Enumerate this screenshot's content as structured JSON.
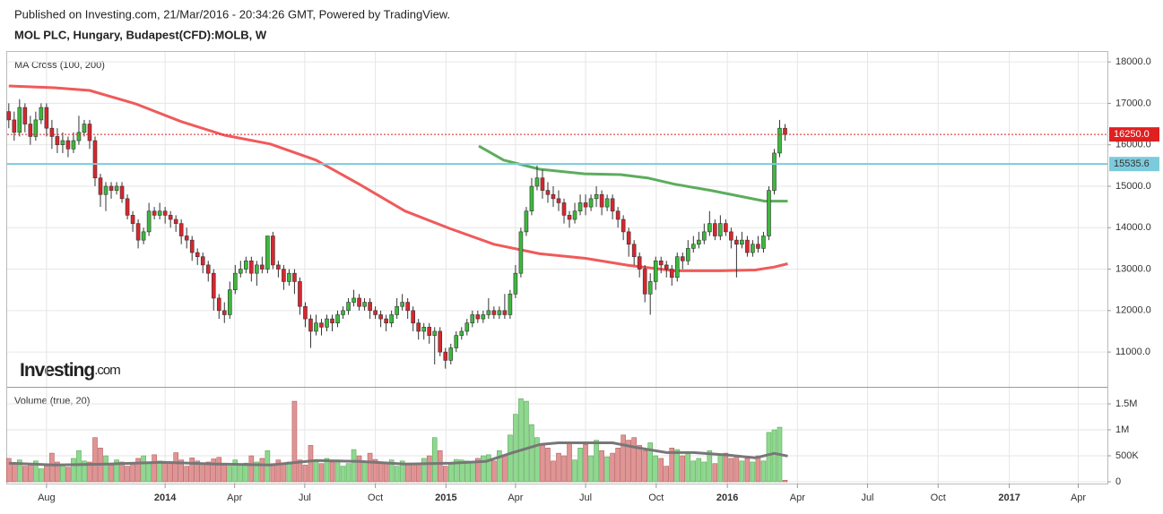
{
  "header": {
    "published": "Published on Investing.com, 21/Mar/2016 - 20:34:26 GMT, Powered by TradingView.",
    "symbol": "MOL PLC, Hungary, Budapest(CFD):MOLB, W"
  },
  "logo": {
    "brand": "Investing",
    "suffix": ".com"
  },
  "chart_data": [
    {
      "type": "candlestick",
      "title": "MA Cross (100, 200)",
      "up_color": "#3cb93c",
      "down_color": "#d9262e",
      "x": [
        -29,
        -28,
        -27,
        -26,
        -25,
        -24,
        -23,
        -22,
        -21,
        -20,
        -19,
        -18,
        -17,
        -16,
        -15,
        -14,
        -13,
        -12,
        -11,
        -10,
        -9,
        -8,
        -7,
        -6,
        -5,
        -4,
        -3,
        -2,
        -1,
        0,
        1,
        2,
        3,
        4,
        5,
        6,
        7,
        8,
        9,
        10,
        11,
        12,
        13,
        14,
        15,
        16,
        17,
        18,
        19,
        20,
        21,
        22,
        23,
        24,
        25,
        26,
        27,
        28,
        29,
        30,
        31,
        32,
        33,
        34,
        35,
        36,
        37,
        38,
        39,
        40,
        41,
        42,
        43,
        44,
        45,
        46,
        47,
        48,
        49,
        50,
        51,
        52,
        53,
        54,
        55,
        56,
        57,
        58,
        59,
        60,
        61,
        62,
        63,
        64,
        65,
        66,
        67,
        68,
        69,
        70,
        71,
        72,
        73,
        74,
        75,
        76,
        77,
        78,
        79,
        80,
        81,
        82,
        83,
        84,
        85,
        86,
        87,
        88,
        89,
        90,
        91,
        92,
        93,
        94,
        95,
        96,
        97,
        98,
        99,
        100,
        101,
        102,
        103,
        104,
        105,
        106,
        107,
        108,
        109,
        110,
        111,
        112,
        113,
        114,
        115
      ],
      "open": [
        16800,
        16600,
        16300,
        16900,
        16500,
        16200,
        16600,
        16900,
        16400,
        16200,
        16000,
        16100,
        15900,
        16100,
        16300,
        16500,
        16100,
        15200,
        14800,
        15000,
        14900,
        15000,
        14700,
        14300,
        14100,
        13700,
        13900,
        14400,
        14300,
        14400,
        14300,
        14200,
        14100,
        13800,
        13700,
        13400,
        13300,
        13100,
        12900,
        12300,
        12000,
        11900,
        12500,
        12900,
        13000,
        13200,
        12900,
        13100,
        13000,
        13800,
        13100,
        13000,
        12700,
        12900,
        12700,
        12100,
        11800,
        11500,
        11700,
        11600,
        11800,
        11700,
        11900,
        12000,
        12200,
        12300,
        12100,
        12200,
        12000,
        11900,
        11800,
        11700,
        11900,
        12100,
        12200,
        12000,
        11700,
        11500,
        11600,
        11400,
        11500,
        11000,
        10800,
        11100,
        11400,
        11500,
        11700,
        11900,
        11800,
        11900,
        12000,
        11900,
        12000,
        11900,
        12400,
        12900,
        13900,
        14400,
        15000,
        15200,
        14900,
        14800,
        14700,
        14600,
        14300,
        14200,
        14400,
        14600,
        14500,
        14700,
        14800,
        14500,
        14700,
        14400,
        14200,
        13900,
        13600,
        13300,
        13000,
        12400,
        12700,
        13200,
        13100,
        13000,
        12800,
        13300,
        13200,
        13500,
        13600,
        13700,
        13900,
        14100,
        13800,
        14100,
        13900,
        13700,
        13600,
        13700,
        13400,
        13600,
        13500,
        13800,
        14900,
        15800,
        16400
      ],
      "high": [
        17000,
        16800,
        17100,
        17000,
        16700,
        16800,
        17000,
        17000,
        16600,
        16400,
        16300,
        16200,
        16300,
        16700,
        16600,
        16600,
        16200,
        15300,
        15100,
        15100,
        15100,
        15100,
        14800,
        14400,
        14200,
        14000,
        14600,
        14500,
        14600,
        14500,
        14400,
        14300,
        14200,
        14000,
        13800,
        13500,
        13400,
        13200,
        13000,
        12400,
        12200,
        12700,
        13100,
        13200,
        13300,
        13300,
        13200,
        13300,
        13800,
        13900,
        13200,
        13100,
        13000,
        13000,
        12800,
        12200,
        11900,
        11900,
        11800,
        11900,
        11900,
        12000,
        12100,
        12300,
        12500,
        12400,
        12300,
        12300,
        12100,
        12000,
        11900,
        12000,
        12300,
        12400,
        12300,
        12100,
        11800,
        11700,
        11700,
        11600,
        11600,
        11100,
        11200,
        11500,
        11600,
        11800,
        12000,
        12000,
        12000,
        12300,
        12100,
        12100,
        12400,
        12500,
        13100,
        14000,
        14500,
        15200,
        15500,
        15400,
        15100,
        15000,
        14900,
        14700,
        14400,
        14600,
        14800,
        14800,
        14800,
        15000,
        14900,
        14800,
        14800,
        14500,
        14300,
        14000,
        13700,
        13400,
        13100,
        12900,
        13300,
        13300,
        13200,
        13100,
        13400,
        13400,
        13700,
        13800,
        13900,
        14100,
        14400,
        14200,
        14300,
        14200,
        14000,
        13800,
        13900,
        13800,
        13700,
        13800,
        13900,
        15000,
        15900,
        16600,
        16500
      ],
      "low": [
        16400,
        16100,
        16200,
        16300,
        16000,
        16100,
        16500,
        16200,
        15900,
        15800,
        15800,
        15700,
        15800,
        16000,
        16200,
        15900,
        15000,
        14500,
        14400,
        14700,
        14800,
        14600,
        14200,
        13900,
        13500,
        13600,
        13800,
        14200,
        14200,
        14100,
        14000,
        13900,
        13600,
        13500,
        13200,
        13100,
        12900,
        12700,
        12000,
        11800,
        11700,
        11800,
        12400,
        12800,
        12900,
        12700,
        12600,
        12900,
        12900,
        13000,
        12800,
        12500,
        12600,
        12400,
        11900,
        11600,
        11100,
        11400,
        11400,
        11500,
        11500,
        11600,
        11800,
        11900,
        12100,
        12000,
        12000,
        11800,
        11800,
        11600,
        11500,
        11600,
        11800,
        12000,
        11800,
        11500,
        11300,
        11300,
        11200,
        10700,
        10900,
        10600,
        10700,
        11000,
        11300,
        11400,
        11600,
        11700,
        11700,
        11800,
        11800,
        11800,
        11800,
        11800,
        12300,
        12800,
        13800,
        14300,
        14900,
        14700,
        14600,
        14500,
        14400,
        14100,
        14000,
        14100,
        14300,
        14300,
        14400,
        14500,
        14300,
        14400,
        14200,
        14000,
        13700,
        13300,
        13100,
        12800,
        12200,
        11900,
        12500,
        12900,
        12800,
        12600,
        12700,
        13000,
        13100,
        13400,
        13500,
        13600,
        13800,
        13700,
        13700,
        13800,
        13500,
        12800,
        13500,
        13300,
        13300,
        13400,
        13400,
        13700,
        14800,
        15700,
        16100
      ],
      "close": [
        16600,
        16300,
        16900,
        16500,
        16200,
        16600,
        16900,
        16400,
        16200,
        16000,
        16100,
        15900,
        16100,
        16300,
        16500,
        16100,
        15200,
        14800,
        15000,
        14900,
        15000,
        14700,
        14300,
        14100,
        13700,
        13900,
        14400,
        14300,
        14400,
        14300,
        14200,
        14100,
        13800,
        13700,
        13400,
        13300,
        13100,
        12900,
        12300,
        12000,
        11900,
        12500,
        12900,
        13000,
        13200,
        12900,
        13100,
        13000,
        13800,
        13100,
        13000,
        12700,
        12900,
        12700,
        12100,
        11800,
        11500,
        11700,
        11600,
        11800,
        11700,
        11900,
        12000,
        12200,
        12300,
        12100,
        12200,
        12000,
        11900,
        11800,
        11700,
        11900,
        12100,
        12200,
        12000,
        11700,
        11500,
        11600,
        11400,
        11500,
        11000,
        10800,
        11100,
        11400,
        11500,
        11700,
        11900,
        11800,
        11900,
        12000,
        11900,
        12000,
        11900,
        12400,
        12900,
        13900,
        14400,
        15000,
        15200,
        14900,
        14800,
        14700,
        14600,
        14300,
        14200,
        14400,
        14600,
        14500,
        14700,
        14800,
        14500,
        14700,
        14400,
        14200,
        13900,
        13600,
        13300,
        13000,
        12400,
        12700,
        13200,
        13100,
        13000,
        12800,
        13300,
        13200,
        13500,
        13600,
        13700,
        13900,
        14100,
        13800,
        14100,
        13900,
        13700,
        13600,
        13700,
        13400,
        13600,
        13500,
        13800,
        14900,
        15800,
        16400,
        16250
      ],
      "lines": [
        {
          "color": "#f05a5a",
          "x": [
            -29,
            -20.5,
            -14,
            -5.5,
            3,
            11,
            19.5,
            28,
            36,
            44.5,
            53,
            61,
            69.5,
            78,
            86,
            94.5,
            103,
            109.5,
            113,
            115.5
          ],
          "values": [
            17420,
            17375,
            17310,
            16990,
            16560,
            16230,
            16020,
            15630,
            15050,
            14400,
            13970,
            13600,
            13370,
            13260,
            13090,
            12960,
            12960,
            12980,
            13050,
            13130
          ]
        },
        {
          "color": "#5cad5c",
          "x": [
            58.2,
            62.8,
            69.5,
            77.8,
            84.5,
            89.5,
            94.5,
            101.2,
            106.2,
            111.2,
            115.5
          ],
          "values": [
            15970,
            15630,
            15410,
            15300,
            15280,
            15200,
            15050,
            14900,
            14770,
            14640,
            14640
          ]
        }
      ],
      "hlines": [
        {
          "value": 16250,
          "label": "16250.0",
          "color": "#e02020",
          "text_color": "#ffffff",
          "dashed": true
        },
        {
          "value": 15535.6,
          "label": "15535.6",
          "color": "#7ccbdc",
          "text_color": "#333333",
          "dashed": false
        }
      ],
      "xlim": [
        -29.3,
        174.8
      ],
      "xticks": [
        {
          "value": -22,
          "label": "Aug"
        },
        {
          "value": 0,
          "label": "2014"
        },
        {
          "value": 12.9,
          "label": "Apr"
        },
        {
          "value": 25.9,
          "label": "Jul"
        },
        {
          "value": 39,
          "label": "Oct"
        },
        {
          "value": 52.1,
          "label": "2015"
        },
        {
          "value": 65,
          "label": "Apr"
        },
        {
          "value": 78,
          "label": "Jul"
        },
        {
          "value": 91.1,
          "label": "Oct"
        },
        {
          "value": 104.3,
          "label": "2016"
        },
        {
          "value": 117.3,
          "label": "Apr"
        },
        {
          "value": 130.3,
          "label": "Jul"
        },
        {
          "value": 143.4,
          "label": "Oct"
        },
        {
          "value": 156.6,
          "label": "2017"
        },
        {
          "value": 169.4,
          "label": "Apr"
        }
      ],
      "ylim": [
        10160,
        18240
      ],
      "yticks": [
        {
          "value": 11000,
          "label": "11000.0"
        },
        {
          "value": 12000,
          "label": "12000.0"
        },
        {
          "value": 13000,
          "label": "13000.0"
        },
        {
          "value": 14000,
          "label": "14000.0"
        },
        {
          "value": 15000,
          "label": "15000.0"
        },
        {
          "value": 16000,
          "label": "16000.0"
        },
        {
          "value": 17000,
          "label": "17000.0"
        },
        {
          "value": 18000,
          "label": "18000.0"
        }
      ],
      "grid": true
    },
    {
      "type": "bar",
      "title": "Volume (true, 20)",
      "up_color": "#8fd88f",
      "down_color": "#e09494",
      "values": [
        450000,
        350000,
        420000,
        300000,
        350000,
        400000,
        250000,
        300000,
        550000,
        380000,
        320000,
        280000,
        450000,
        600000,
        400000,
        380000,
        850000,
        650000,
        500000,
        320000,
        420000,
        380000,
        300000,
        350000,
        450000,
        500000,
        360000,
        520000,
        400000,
        350000,
        380000,
        560000,
        420000,
        300000,
        460000,
        400000,
        350000,
        380000,
        440000,
        470000,
        350000,
        300000,
        420000,
        330000,
        360000,
        500000,
        380000,
        450000,
        600000,
        350000,
        420000,
        350000,
        380000,
        1550000,
        420000,
        320000,
        700000,
        400000,
        350000,
        450000,
        380000,
        420000,
        300000,
        350000,
        620000,
        500000,
        400000,
        550000,
        430000,
        380000,
        350000,
        420000,
        300000,
        400000,
        360000,
        330000,
        350000,
        450000,
        500000,
        850000,
        600000,
        300000,
        350000,
        430000,
        420000,
        400000,
        380000,
        450000,
        500000,
        520000,
        400000,
        600000,
        500000,
        900000,
        1300000,
        1600000,
        1550000,
        1100000,
        850000,
        700000,
        650000,
        400000,
        550000,
        500000,
        750000,
        420000,
        650000,
        720000,
        500000,
        800000,
        600000,
        480000,
        550000,
        650000,
        900000,
        800000,
        850000,
        700000,
        600000,
        750000,
        500000,
        450000,
        300000,
        650000,
        620000,
        500000,
        580000,
        400000,
        450000,
        380000,
        600000,
        350000,
        520000,
        550000,
        450000,
        500000,
        400000,
        450000,
        380000,
        500000,
        400000,
        950000,
        1000000,
        1050000,
        30000
      ],
      "lines": [
        {
          "color": "#777777",
          "x": [
            -29,
            -20.5,
            -10.5,
            -0.5,
            9.5,
            19.5,
            28,
            36,
            44.5,
            53,
            59.5,
            64.5,
            69.5,
            73,
            83,
            88,
            93,
            98,
            104.5,
            109.5,
            113,
            115.5
          ],
          "values": [
            358000,
            324000,
            341000,
            375000,
            341000,
            324000,
            410000,
            392000,
            341000,
            358000,
            392000,
            563000,
            717000,
            750000,
            750000,
            648000,
            563000,
            563000,
            512000,
            461000,
            546000,
            495000
          ]
        }
      ],
      "ylim": [
        -34000,
        1810000
      ],
      "yticks": [
        0,
        {
          "value": 500000,
          "label": "500K"
        },
        {
          "value": 1000000,
          "label": "1M"
        },
        {
          "value": 1500000,
          "label": "1.5M"
        }
      ]
    }
  ]
}
